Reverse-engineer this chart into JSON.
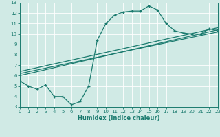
{
  "xlabel": "Humidex (Indice chaleur)",
  "xlim": [
    0,
    23
  ],
  "ylim": [
    3,
    13
  ],
  "xticks": [
    0,
    1,
    2,
    3,
    4,
    5,
    6,
    7,
    8,
    9,
    10,
    11,
    12,
    13,
    14,
    15,
    16,
    17,
    18,
    19,
    20,
    21,
    22,
    23
  ],
  "yticks": [
    3,
    4,
    5,
    6,
    7,
    8,
    9,
    10,
    11,
    12,
    13
  ],
  "line_color": "#1a7a6e",
  "bg_color": "#d0eae5",
  "grid_color": "#b8d8d2",
  "main_x": [
    0,
    1,
    2,
    3,
    4,
    5,
    6,
    7,
    8,
    9,
    10,
    11,
    12,
    13,
    14,
    15,
    16,
    17,
    18,
    19,
    20,
    21,
    22,
    23
  ],
  "main_y": [
    5.5,
    5.0,
    4.7,
    5.1,
    4.0,
    4.0,
    3.2,
    3.5,
    5.0,
    9.4,
    11.0,
    11.8,
    12.1,
    12.2,
    12.2,
    12.7,
    12.3,
    11.0,
    10.3,
    10.1,
    10.0,
    10.0,
    10.5,
    10.3
  ],
  "linear_lines": [
    {
      "x": [
        0,
        23
      ],
      "y": [
        6.0,
        10.4
      ]
    },
    {
      "x": [
        0,
        23
      ],
      "y": [
        6.2,
        10.2
      ]
    },
    {
      "x": [
        0,
        23
      ],
      "y": [
        6.4,
        10.6
      ]
    }
  ]
}
